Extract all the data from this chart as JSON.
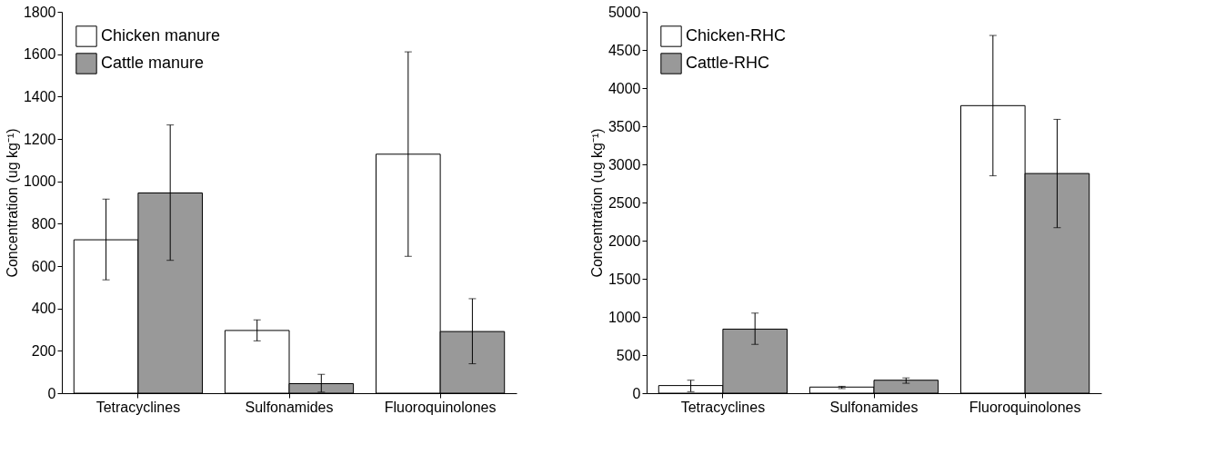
{
  "chart_data": [
    {
      "type": "bar",
      "ylabel": "Concentration (ug kg⁻¹)",
      "categories": [
        "Tetracyclines",
        "Sulfonamides",
        "Fluoroquinolones"
      ],
      "series": [
        {
          "name": "Chicken manure",
          "color": "#ffffff",
          "values": [
            724,
            296,
            1128
          ],
          "errors": [
            [
              535,
              916
            ],
            [
              247,
              346
            ],
            [
              646,
              1611
            ]
          ]
        },
        {
          "name": "Cattle manure",
          "color": "#999999",
          "values": [
            945,
            45,
            291
          ],
          "errors": [
            [
              627,
              1266
            ],
            [
              5,
              89
            ],
            [
              139,
              446
            ]
          ]
        }
      ],
      "ylim": [
        0,
        1800
      ],
      "yticks": [
        0,
        200,
        400,
        600,
        800,
        1000,
        1200,
        1400,
        1600,
        1800
      ],
      "grid": false,
      "legend": "top left"
    },
    {
      "type": "bar",
      "ylabel": "Concentration (ug kg⁻¹)",
      "categories": [
        "Tetracyclines",
        "Sulfonamides",
        "Fluoroquinolones"
      ],
      "series": [
        {
          "name": "Chicken-RHC",
          "color": "#ffffff",
          "values": [
            100,
            80,
            3770
          ],
          "errors": [
            [
              20,
              170
            ],
            [
              60,
              90
            ],
            [
              2850,
              4690
            ]
          ]
        },
        {
          "name": "Cattle-RHC",
          "color": "#999999",
          "values": [
            840,
            170,
            2880
          ],
          "errors": [
            [
              640,
              1050
            ],
            [
              130,
              200
            ],
            [
              2170,
              3590
            ]
          ]
        }
      ],
      "ylim": [
        0,
        5000
      ],
      "yticks": [
        0,
        500,
        1000,
        1500,
        2000,
        2500,
        3000,
        3500,
        4000,
        4500,
        5000
      ],
      "grid": false,
      "legend": "top left"
    }
  ]
}
